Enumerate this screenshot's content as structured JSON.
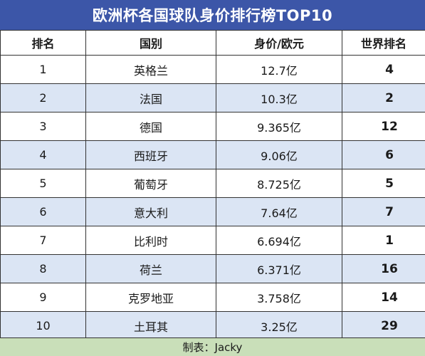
{
  "title": "欧洲杯各国球队身价排行榜TOP10",
  "headers": {
    "rank": "排名",
    "country": "国别",
    "value": "身价/欧元",
    "world_rank": "世界排名"
  },
  "rows": [
    {
      "rank": "1",
      "country": "英格兰",
      "value": "12.7亿",
      "world_rank": "4"
    },
    {
      "rank": "2",
      "country": "法国",
      "value": "10.3亿",
      "world_rank": "2"
    },
    {
      "rank": "3",
      "country": "德国",
      "value": "9.365亿",
      "world_rank": "12"
    },
    {
      "rank": "4",
      "country": "西班牙",
      "value": "9.06亿",
      "world_rank": "6"
    },
    {
      "rank": "5",
      "country": "葡萄牙",
      "value": "8.725亿",
      "world_rank": "5"
    },
    {
      "rank": "6",
      "country": "意大利",
      "value": "7.64亿",
      "world_rank": "7"
    },
    {
      "rank": "7",
      "country": "比利时",
      "value": "6.694亿",
      "world_rank": "1"
    },
    {
      "rank": "8",
      "country": "荷兰",
      "value": "6.371亿",
      "world_rank": "16"
    },
    {
      "rank": "9",
      "country": "克罗地亚",
      "value": "3.758亿",
      "world_rank": "14"
    },
    {
      "rank": "10",
      "country": "土耳其",
      "value": "3.25亿",
      "world_rank": "29"
    }
  ],
  "credit": "制表：Jacky"
}
